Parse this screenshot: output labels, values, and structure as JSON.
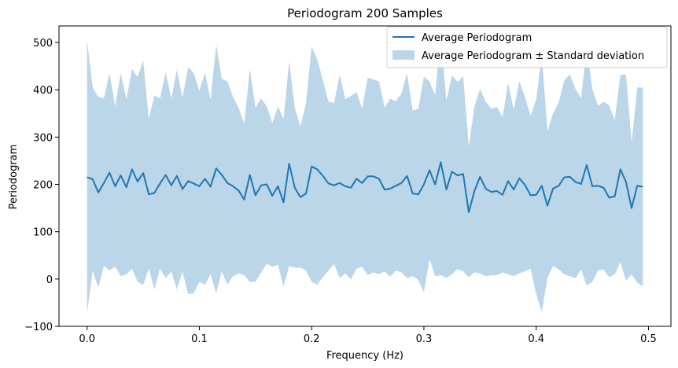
{
  "chart_data": {
    "type": "line",
    "title": "Periodogram 200 Samples",
    "xlabel": "Frequency (Hz)",
    "ylabel": "Periodogram",
    "xlim": [
      -0.025,
      0.52
    ],
    "ylim": [
      -100,
      535
    ],
    "xticks": [
      0.0,
      0.1,
      0.2,
      0.3,
      0.4,
      0.5
    ],
    "xtick_labels": [
      "0.0",
      "0.1",
      "0.2",
      "0.3",
      "0.4",
      "0.5"
    ],
    "yticks": [
      -100,
      0,
      100,
      200,
      300,
      400,
      500
    ],
    "ytick_labels": [
      "−100",
      "0",
      "100",
      "200",
      "300",
      "400",
      "500"
    ],
    "grid": false,
    "legend_position": "top-right",
    "colors": {
      "line": "#1f77b4",
      "band": "#bad6e8"
    },
    "x_step": 0.005,
    "series": [
      {
        "name": "Average Periodogram",
        "values": [
          215,
          211,
          183,
          203,
          225,
          196,
          219,
          194,
          232,
          206,
          224,
          179,
          182,
          202,
          220,
          198,
          218,
          190,
          207,
          202,
          196,
          212,
          195,
          234,
          220,
          203,
          196,
          187,
          168,
          220,
          177,
          198,
          200,
          176,
          196,
          162,
          244,
          193,
          173,
          181,
          238,
          232,
          218,
          202,
          198,
          203,
          196,
          193,
          212,
          203,
          217,
          217,
          212,
          189,
          191,
          197,
          203,
          218,
          181,
          179,
          200,
          230,
          200,
          247,
          189,
          227,
          219,
          222,
          141,
          186,
          216,
          191,
          184,
          186,
          178,
          207,
          189,
          213,
          199,
          177,
          178,
          197,
          155,
          191,
          197,
          215,
          216,
          205,
          201,
          241,
          196,
          197,
          193,
          172,
          175,
          232,
          205,
          150,
          197,
          195
        ]
      },
      {
        "name": "Average Periodogram ± Standard deviation",
        "upper": [
          505,
          405,
          385,
          382,
          435,
          365,
          435,
          380,
          444,
          427,
          462,
          338,
          388,
          382,
          437,
          382,
          442,
          383,
          448,
          435,
          398,
          436,
          380,
          495,
          423,
          418,
          385,
          362,
          328,
          445,
          362,
          382,
          365,
          330,
          365,
          338,
          460,
          362,
          322,
          372,
          492,
          465,
          420,
          375,
          372,
          432,
          380,
          387,
          395,
          360,
          426,
          422,
          418,
          362,
          381,
          376,
          392,
          435,
          356,
          360,
          428,
          418,
          388,
          514,
          377,
          430,
          417,
          428,
          280,
          365,
          402,
          375,
          360,
          364,
          342,
          415,
          358,
          418,
          385,
          345,
          380,
          475,
          312,
          350,
          373,
          420,
          433,
          402,
          382,
          490,
          402,
          366,
          375,
          367,
          336,
          432,
          432,
          288,
          405,
          405
        ],
        "lower": [
          -72,
          18,
          -18,
          28,
          18,
          26,
          6,
          10,
          22,
          -6,
          -12,
          22,
          -22,
          22,
          2,
          16,
          -22,
          16,
          -32,
          -30,
          -6,
          -12,
          10,
          -30,
          16,
          -12,
          6,
          12,
          8,
          -6,
          -6,
          14,
          32,
          26,
          30,
          -16,
          28,
          24,
          24,
          18,
          -6,
          -12,
          4,
          18,
          32,
          2,
          12,
          -1,
          22,
          26,
          8,
          14,
          10,
          16,
          5,
          18,
          14,
          2,
          6,
          -2,
          -28,
          42,
          6,
          8,
          2,
          10,
          21,
          16,
          4,
          14,
          12,
          6,
          8,
          8,
          14,
          10,
          6,
          12,
          16,
          22,
          -32,
          -70,
          2,
          28,
          20,
          10,
          6,
          2,
          20,
          -14,
          -6,
          18,
          20,
          4,
          10,
          36,
          -4,
          10,
          -8,
          -15
        ]
      }
    ]
  }
}
